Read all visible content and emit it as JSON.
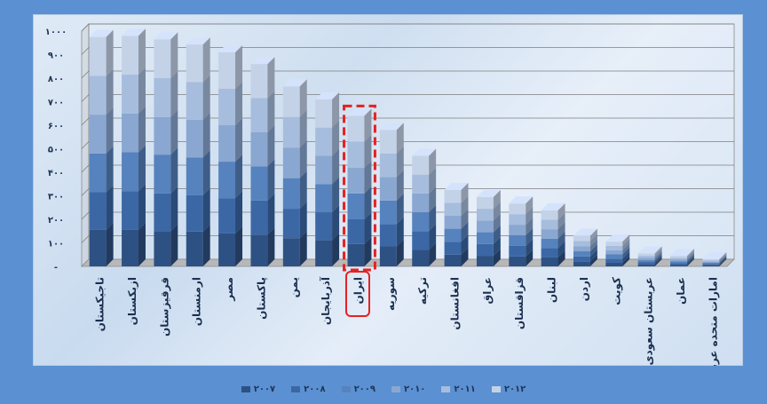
{
  "chart_data": {
    "type": "bar",
    "stacked": true,
    "three_d": true,
    "categories": [
      "تاجیکستان",
      "ازبکستان",
      "قرقیزستان",
      "ارمنستان",
      "مصر",
      "پاکستان",
      "یمن",
      "آذربایجان",
      "ایران",
      "سوریه",
      "ترکیه",
      "افغانستان",
      "عراق",
      "قزاقستان",
      "لبنان",
      "اردن",
      "کویت",
      "عربستان سعودی",
      "عمان",
      "امارات متحده عربی"
    ],
    "series": [
      {
        "name": "۲۰۰۷",
        "values": [
          155,
          155,
          150,
          148,
          140,
          135,
          120,
          112,
          95,
          85,
          70,
          50,
          45,
          42,
          38,
          20,
          15,
          8,
          6,
          5
        ]
      },
      {
        "name": "۲۰۰۸",
        "values": [
          160,
          165,
          160,
          155,
          150,
          145,
          125,
          118,
          105,
          95,
          80,
          55,
          50,
          45,
          40,
          22,
          18,
          9,
          7,
          5
        ]
      },
      {
        "name": "۲۰۰۹",
        "values": [
          165,
          165,
          165,
          160,
          155,
          145,
          130,
          120,
          110,
          100,
          80,
          55,
          50,
          45,
          40,
          22,
          18,
          9,
          8,
          5
        ]
      },
      {
        "name": "۲۰۱۰",
        "values": [
          165,
          165,
          160,
          160,
          155,
          145,
          130,
          120,
          110,
          100,
          80,
          55,
          50,
          45,
          40,
          22,
          18,
          10,
          8,
          5
        ]
      },
      {
        "name": "۲۰۱۱",
        "values": [
          165,
          165,
          165,
          160,
          155,
          145,
          130,
          120,
          110,
          100,
          80,
          55,
          50,
          45,
          40,
          22,
          18,
          9,
          8,
          5
        ]
      },
      {
        "name": "۲۰۱۲",
        "values": [
          165,
          165,
          165,
          160,
          155,
          145,
          130,
          120,
          110,
          100,
          80,
          55,
          50,
          45,
          40,
          22,
          18,
          10,
          8,
          5
        ]
      }
    ],
    "y_ticks": [
      "-",
      "۱۰۰",
      "۲۰۰",
      "۳۰۰",
      "۴۰۰",
      "۵۰۰",
      "۶۰۰",
      "۷۰۰",
      "۸۰۰",
      "۹۰۰",
      "۱۰۰۰"
    ],
    "ylim": [
      0,
      1000
    ],
    "highlight_category": "ایران",
    "grid": true,
    "legend_position": "bottom",
    "colors": [
      "#2e5183",
      "#3b67a5",
      "#5682bd",
      "#8aa7d1",
      "#a6bddd",
      "#c4d2e8"
    ],
    "highlight_color": "#e42222"
  }
}
